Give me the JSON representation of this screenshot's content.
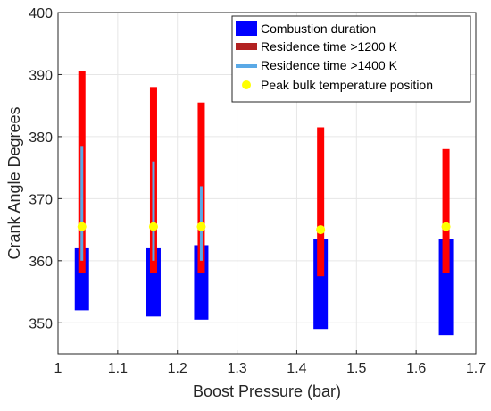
{
  "chart_data": {
    "type": "range-bar",
    "xlabel": "Boost Pressure (bar)",
    "ylabel": "Crank Angle Degrees",
    "xlim": [
      1,
      1.7
    ],
    "ylim": [
      345,
      400
    ],
    "xticks": [
      "1",
      "1.1",
      "1.2",
      "1.3",
      "1.4",
      "1.5",
      "1.6",
      "1.7"
    ],
    "yticks": [
      "350",
      "360",
      "370",
      "380",
      "390",
      "400"
    ],
    "grid": true,
    "legend_position": "top-right",
    "series": [
      {
        "name": "Combustion duration",
        "color": "#0000ff",
        "points": [
          {
            "x": 1.04,
            "low": 352,
            "high": 362
          },
          {
            "x": 1.16,
            "low": 351,
            "high": 362
          },
          {
            "x": 1.24,
            "low": 350.5,
            "high": 362.5
          },
          {
            "x": 1.44,
            "low": 349,
            "high": 363.5
          },
          {
            "x": 1.65,
            "low": 348,
            "high": 363.5
          }
        ]
      },
      {
        "name": "Residence time >1200 K",
        "color": "#ff0000",
        "points": [
          {
            "x": 1.04,
            "low": 358,
            "high": 390.5
          },
          {
            "x": 1.16,
            "low": 358,
            "high": 388
          },
          {
            "x": 1.24,
            "low": 358,
            "high": 385.5
          },
          {
            "x": 1.44,
            "low": 357.5,
            "high": 381.5
          },
          {
            "x": 1.65,
            "low": 358,
            "high": 378
          }
        ]
      },
      {
        "name": "Residence time >1400 K",
        "color": "#5aa9e6",
        "points": [
          {
            "x": 1.04,
            "low": 360,
            "high": 378.5
          },
          {
            "x": 1.16,
            "low": 360,
            "high": 376
          },
          {
            "x": 1.24,
            "low": 360,
            "high": 372
          }
        ]
      },
      {
        "name": "Peak bulk temperature position",
        "color": "#ffff00",
        "points": [
          {
            "x": 1.04,
            "y": 365.5
          },
          {
            "x": 1.16,
            "y": 365.5
          },
          {
            "x": 1.24,
            "y": 365.5
          },
          {
            "x": 1.44,
            "y": 365
          },
          {
            "x": 1.65,
            "y": 365.5
          }
        ]
      }
    ]
  },
  "legend": [
    {
      "label": "Combustion duration",
      "marker": "box",
      "color": "#0000ff"
    },
    {
      "label": "Residence time >1200 K",
      "marker": "line",
      "color": "#b22222"
    },
    {
      "label": "Residence time >1400 K",
      "marker": "line",
      "color": "#5aa9e6"
    },
    {
      "label": "Peak bulk temperature position",
      "marker": "dot",
      "color": "#ffff00"
    }
  ]
}
